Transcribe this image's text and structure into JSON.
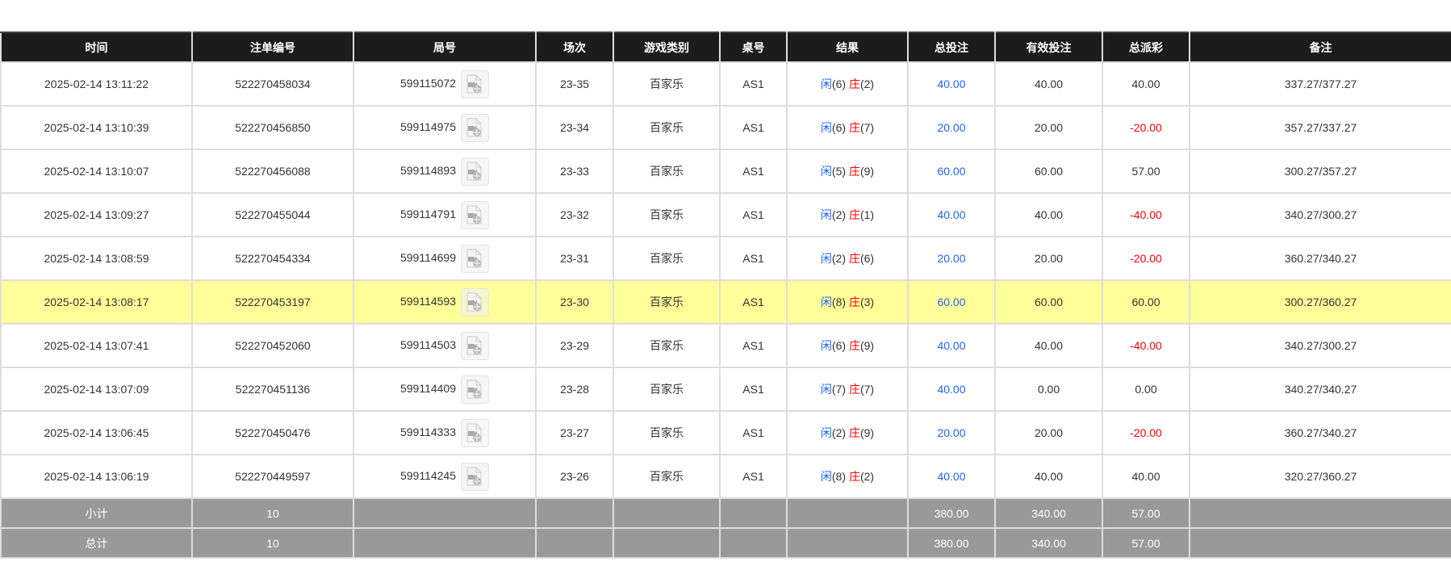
{
  "headers": [
    "时间",
    "注单编号",
    "局号",
    "场次",
    "游戏类别",
    "桌号",
    "结果",
    "总投注",
    "有效投注",
    "总派彩",
    "备注"
  ],
  "colors": {
    "player": "#1e63ff",
    "banker": "#ff0000",
    "highlight": "#ffff99",
    "summary": "#999999",
    "header": "#1c1c1c"
  },
  "rows": [
    {
      "time": "2025-02-14 13:11:22",
      "bet_id": "522270458034",
      "round": "599115072",
      "shoe": "23-35",
      "game": "百家乐",
      "table": "AS1",
      "player": "闲",
      "player_pts": "(6)",
      "banker": "庄",
      "banker_pts": "(2)",
      "total_bet": "40.00",
      "valid_bet": "40.00",
      "payout": "40.00",
      "payout_negative": false,
      "note": "337.27/377.27",
      "highlighted": false
    },
    {
      "time": "2025-02-14 13:10:39",
      "bet_id": "522270456850",
      "round": "599114975",
      "shoe": "23-34",
      "game": "百家乐",
      "table": "AS1",
      "player": "闲",
      "player_pts": "(6)",
      "banker": "庄",
      "banker_pts": "(7)",
      "total_bet": "20.00",
      "valid_bet": "20.00",
      "payout": "-20.00",
      "payout_negative": true,
      "note": "357.27/337.27",
      "highlighted": false
    },
    {
      "time": "2025-02-14 13:10:07",
      "bet_id": "522270456088",
      "round": "599114893",
      "shoe": "23-33",
      "game": "百家乐",
      "table": "AS1",
      "player": "闲",
      "player_pts": "(5)",
      "banker": "庄",
      "banker_pts": "(9)",
      "total_bet": "60.00",
      "valid_bet": "60.00",
      "payout": "57.00",
      "payout_negative": false,
      "note": "300.27/357.27",
      "highlighted": false
    },
    {
      "time": "2025-02-14 13:09:27",
      "bet_id": "522270455044",
      "round": "599114791",
      "shoe": "23-32",
      "game": "百家乐",
      "table": "AS1",
      "player": "闲",
      "player_pts": "(2)",
      "banker": "庄",
      "banker_pts": "(1)",
      "total_bet": "40.00",
      "valid_bet": "40.00",
      "payout": "-40.00",
      "payout_negative": true,
      "note": "340.27/300.27",
      "highlighted": false
    },
    {
      "time": "2025-02-14 13:08:59",
      "bet_id": "522270454334",
      "round": "599114699",
      "shoe": "23-31",
      "game": "百家乐",
      "table": "AS1",
      "player": "闲",
      "player_pts": "(2)",
      "banker": "庄",
      "banker_pts": "(6)",
      "total_bet": "20.00",
      "valid_bet": "20.00",
      "payout": "-20.00",
      "payout_negative": true,
      "note": "360.27/340.27",
      "highlighted": false
    },
    {
      "time": "2025-02-14 13:08:17",
      "bet_id": "522270453197",
      "round": "599114593",
      "shoe": "23-30",
      "game": "百家乐",
      "table": "AS1",
      "player": "闲",
      "player_pts": "(8)",
      "banker": "庄",
      "banker_pts": "(3)",
      "total_bet": "60.00",
      "valid_bet": "60.00",
      "payout": "60.00",
      "payout_negative": false,
      "note": "300.27/360.27",
      "highlighted": true
    },
    {
      "time": "2025-02-14 13:07:41",
      "bet_id": "522270452060",
      "round": "599114503",
      "shoe": "23-29",
      "game": "百家乐",
      "table": "AS1",
      "player": "闲",
      "player_pts": "(6)",
      "banker": "庄",
      "banker_pts": "(9)",
      "total_bet": "40.00",
      "valid_bet": "40.00",
      "payout": "-40.00",
      "payout_negative": true,
      "note": "340.27/300.27",
      "highlighted": false
    },
    {
      "time": "2025-02-14 13:07:09",
      "bet_id": "522270451136",
      "round": "599114409",
      "shoe": "23-28",
      "game": "百家乐",
      "table": "AS1",
      "player": "闲",
      "player_pts": "(7)",
      "banker": "庄",
      "banker_pts": "(7)",
      "total_bet": "40.00",
      "valid_bet": "0.00",
      "payout": "0.00",
      "payout_negative": false,
      "note": "340.27/340.27",
      "highlighted": false
    },
    {
      "time": "2025-02-14 13:06:45",
      "bet_id": "522270450476",
      "round": "599114333",
      "shoe": "23-27",
      "game": "百家乐",
      "table": "AS1",
      "player": "闲",
      "player_pts": "(2)",
      "banker": "庄",
      "banker_pts": "(9)",
      "total_bet": "20.00",
      "valid_bet": "20.00",
      "payout": "-20.00",
      "payout_negative": true,
      "note": "360.27/340.27",
      "highlighted": false
    },
    {
      "time": "2025-02-14 13:06:19",
      "bet_id": "522270449597",
      "round": "599114245",
      "shoe": "23-26",
      "game": "百家乐",
      "table": "AS1",
      "player": "闲",
      "player_pts": "(8)",
      "banker": "庄",
      "banker_pts": "(2)",
      "total_bet": "40.00",
      "valid_bet": "40.00",
      "payout": "40.00",
      "payout_negative": false,
      "note": "320.27/360.27",
      "highlighted": false
    }
  ],
  "summary": [
    {
      "label": "小计",
      "count": "10",
      "total_bet": "380.00",
      "valid_bet": "340.00",
      "payout": "57.00"
    },
    {
      "label": "总计",
      "count": "10",
      "total_bet": "380.00",
      "valid_bet": "340.00",
      "payout": "57.00"
    }
  ]
}
